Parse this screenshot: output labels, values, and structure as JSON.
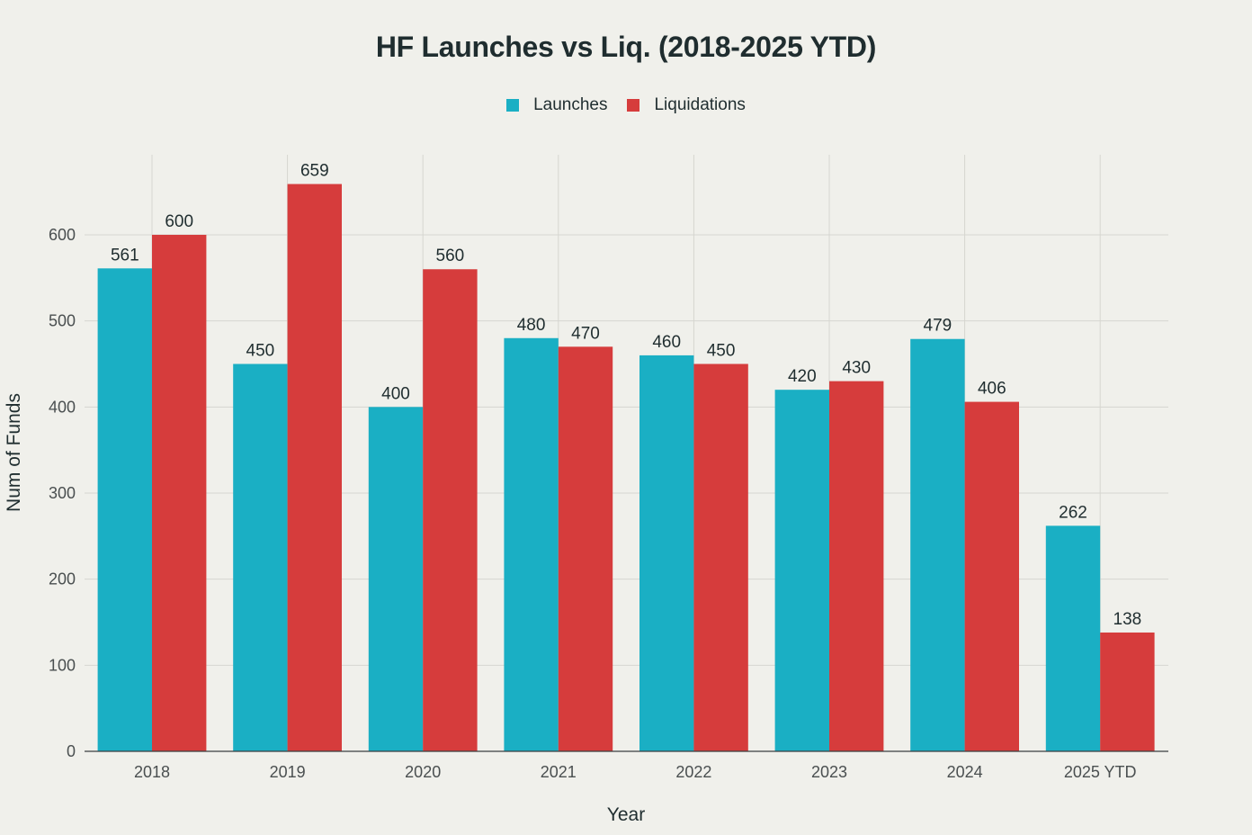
{
  "chart_data": {
    "type": "bar",
    "title": "HF Launches vs Liq. (2018-2025 YTD)",
    "xlabel": "Year",
    "ylabel": "Num of Funds",
    "categories": [
      "2018",
      "2019",
      "2020",
      "2021",
      "2022",
      "2023",
      "2024",
      "2025 YTD"
    ],
    "series": [
      {
        "name": "Launches",
        "color": "#1aafc4",
        "values": [
          561,
          450,
          400,
          480,
          460,
          420,
          479,
          262
        ]
      },
      {
        "name": "Liquidations",
        "color": "#d63c3c",
        "values": [
          600,
          659,
          560,
          470,
          450,
          430,
          406,
          138
        ]
      }
    ],
    "ylim": [
      0,
      693
    ],
    "yticks": [
      0,
      100,
      200,
      300,
      400,
      500,
      600
    ],
    "grid": true,
    "legend_position": "top-center",
    "data_labels": true
  }
}
